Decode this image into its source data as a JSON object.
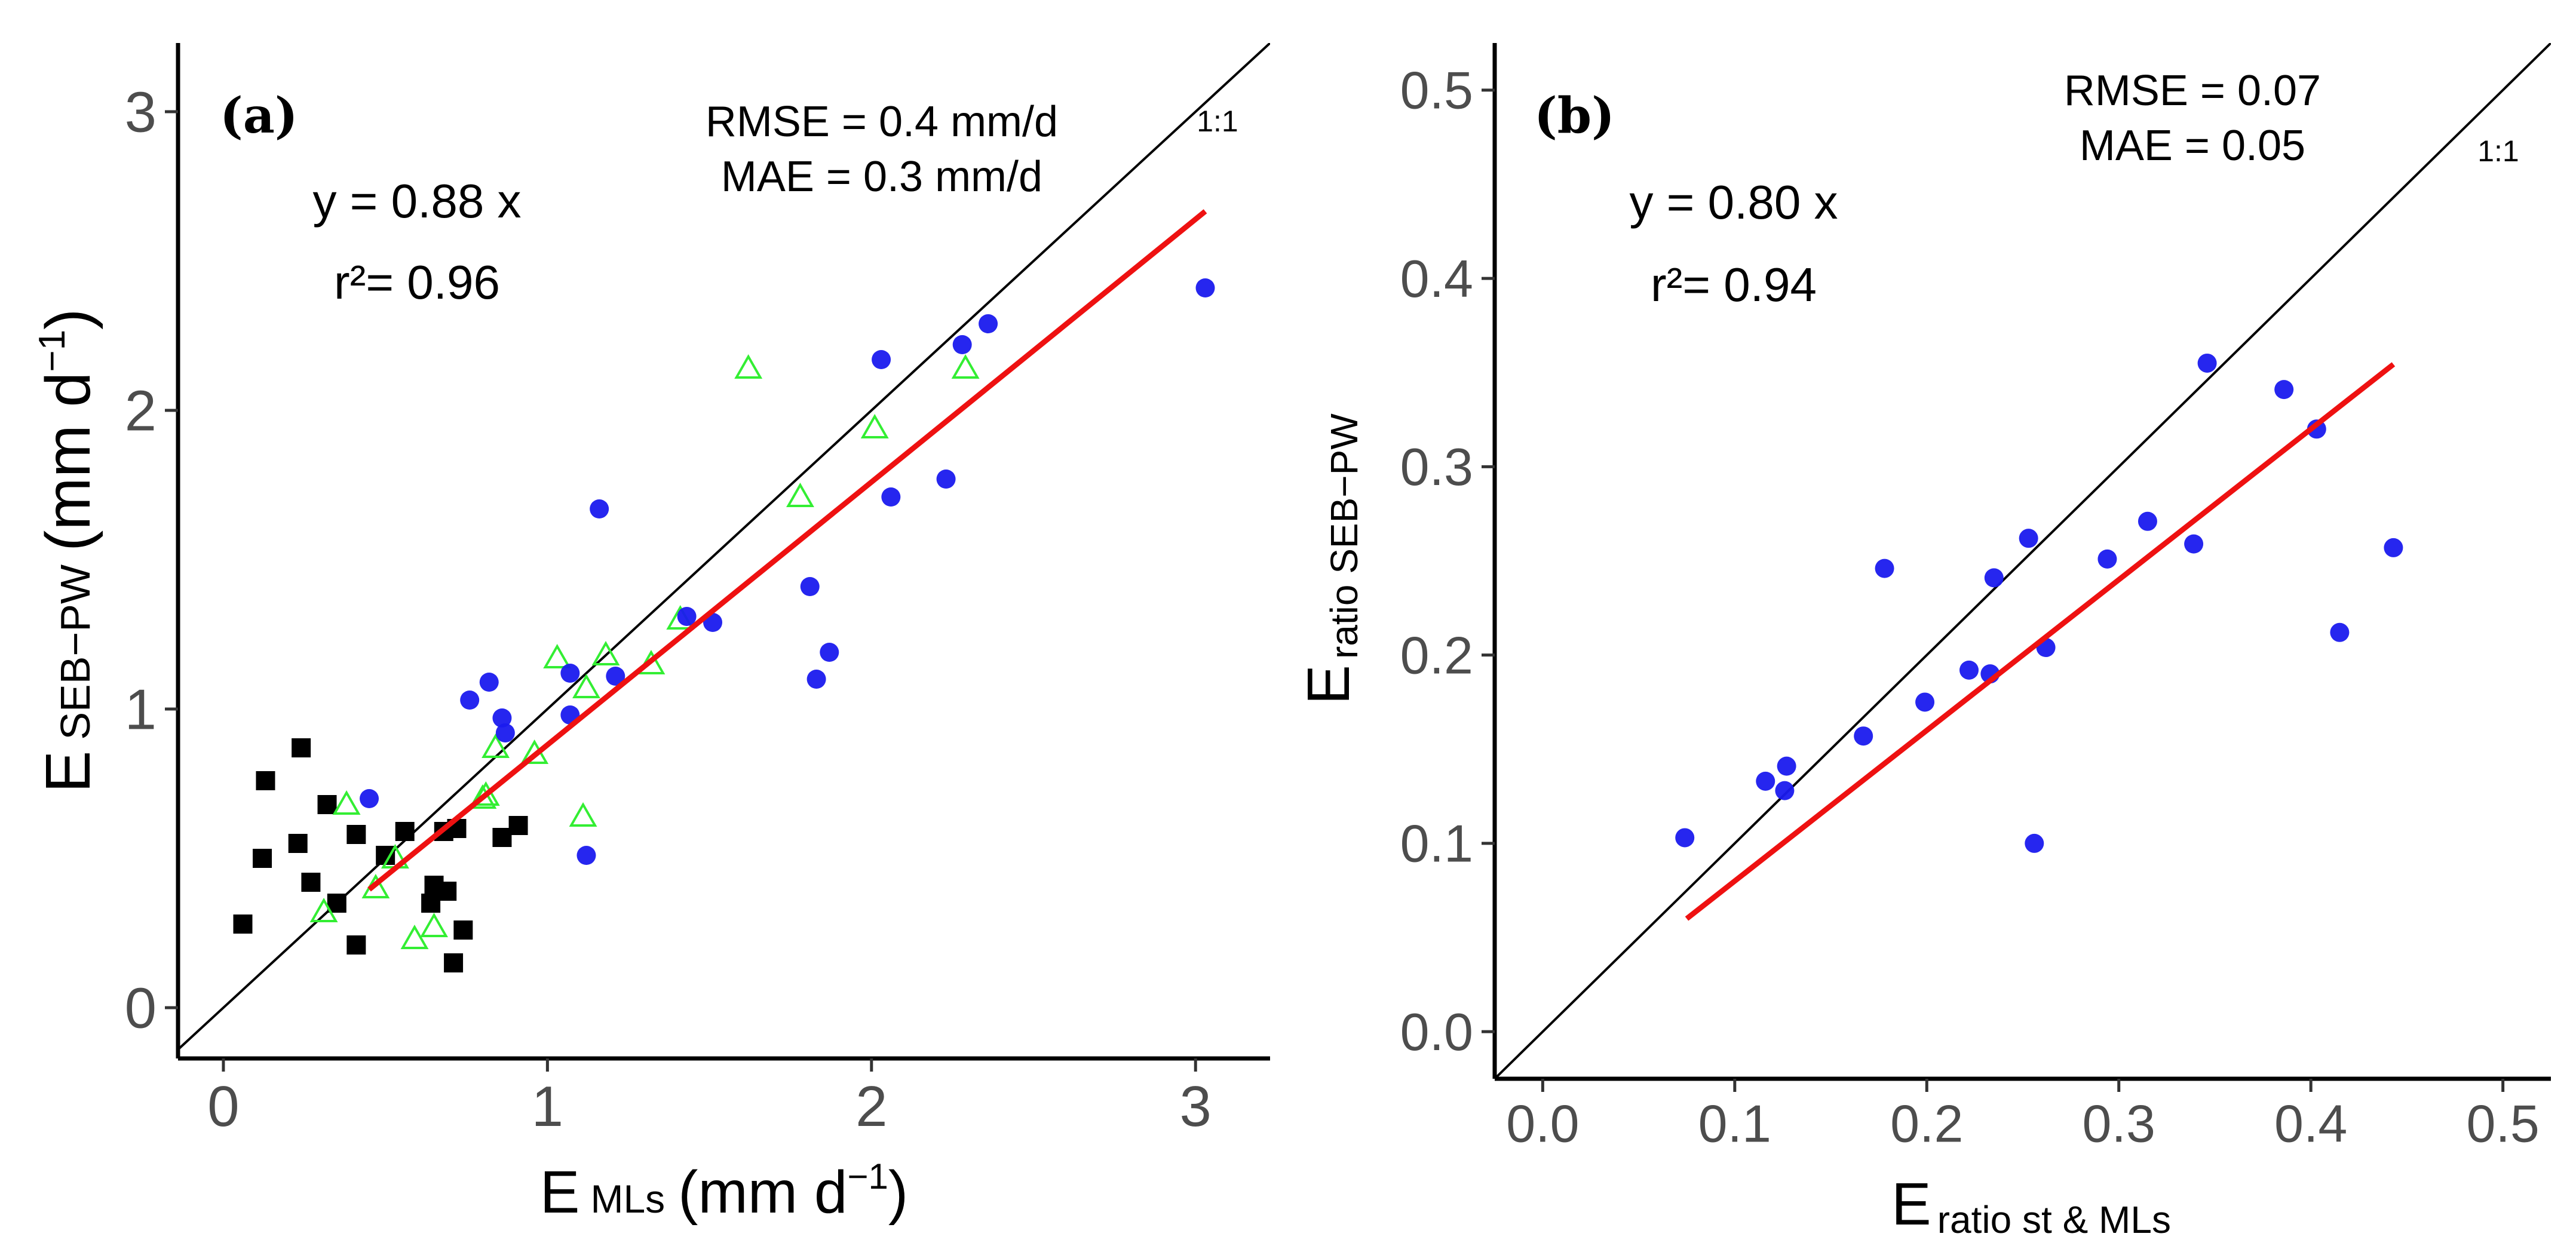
{
  "chart_data": [
    {
      "type": "scatter",
      "panel": "(a)",
      "xlabel_main": "E",
      "xlabel_sub": "MLs",
      "xlabel_unit": "(mm d",
      "xlabel_exp": "−1",
      "xlabel_close": ")",
      "ylabel_main": "E",
      "ylabel_sub": "SEB−PW",
      "ylabel_unit": "(mm d",
      "ylabel_exp": "−1",
      "ylabel_close": ")",
      "xlim": [
        -0.14,
        3.23
      ],
      "ylim": [
        -0.17,
        3.23
      ],
      "xticks": [
        0,
        1,
        2,
        3
      ],
      "yticks": [
        0,
        1,
        2,
        3
      ],
      "xtick_labels": [
        "0",
        "1",
        "2",
        "3"
      ],
      "ytick_labels": [
        "0",
        "1",
        "2",
        "3"
      ],
      "equation": "y = 0.88 x",
      "r2": "r²= 0.96",
      "rmse": "RMSE = 0.4 mm/d",
      "mae": "MAE = 0.3 mm/d",
      "one_to_one_label": "1:1",
      "fit": {
        "slope": 0.88,
        "x_range": [
          0.45,
          3.03
        ]
      },
      "colors": {
        "blue": "#1a1aee",
        "blue_light": "#5a5aee",
        "green": "#33ee33",
        "black": "#000000",
        "fit": "#ee1111"
      },
      "series": [
        {
          "name": "squares",
          "marker": "square",
          "color": "#000000",
          "points": [
            [
              0.06,
              0.28
            ],
            [
              0.12,
              0.5
            ],
            [
              0.13,
              0.76
            ],
            [
              0.23,
              0.55
            ],
            [
              0.24,
              0.87
            ],
            [
              0.27,
              0.42
            ],
            [
              0.32,
              0.68
            ],
            [
              0.35,
              0.35
            ],
            [
              0.41,
              0.21
            ],
            [
              0.41,
              0.58
            ],
            [
              0.5,
              0.51
            ],
            [
              0.56,
              0.59
            ],
            [
              0.64,
              0.35
            ],
            [
              0.65,
              0.41
            ],
            [
              0.68,
              0.59
            ],
            [
              0.69,
              0.39
            ],
            [
              0.71,
              0.15
            ],
            [
              0.72,
              0.6
            ],
            [
              0.74,
              0.26
            ],
            [
              0.86,
              0.57
            ],
            [
              0.91,
              0.61
            ]
          ]
        },
        {
          "name": "triangles",
          "marker": "triangle",
          "color": "#33ee33",
          "points": [
            [
              0.31,
              0.32
            ],
            [
              0.38,
              0.68
            ],
            [
              0.47,
              0.4
            ],
            [
              0.53,
              0.5
            ],
            [
              0.59,
              0.23
            ],
            [
              0.65,
              0.27
            ],
            [
              0.8,
              0.7
            ],
            [
              0.81,
              0.71
            ],
            [
              0.84,
              0.87
            ],
            [
              0.96,
              0.85
            ],
            [
              1.03,
              1.17
            ],
            [
              1.11,
              0.64
            ],
            [
              1.12,
              1.07
            ],
            [
              1.18,
              1.18
            ],
            [
              1.32,
              1.15
            ],
            [
              1.41,
              1.3
            ],
            [
              1.62,
              2.14
            ],
            [
              1.78,
              1.71
            ],
            [
              2.01,
              1.94
            ],
            [
              2.29,
              2.14
            ]
          ]
        },
        {
          "name": "circles",
          "marker": "circle",
          "color": "#1a1aee",
          "points": [
            [
              0.45,
              0.7
            ],
            [
              0.76,
              1.03
            ],
            [
              0.82,
              1.09
            ],
            [
              0.86,
              0.97
            ],
            [
              0.87,
              0.92
            ],
            [
              1.07,
              0.98
            ],
            [
              1.07,
              1.12
            ],
            [
              1.12,
              0.51
            ],
            [
              1.16,
              1.67
            ],
            [
              1.21,
              1.11
            ],
            [
              1.43,
              1.31
            ],
            [
              1.51,
              1.29
            ],
            [
              1.81,
              1.41
            ],
            [
              1.83,
              1.1
            ],
            [
              1.87,
              1.19
            ],
            [
              2.03,
              2.17
            ],
            [
              2.06,
              1.71
            ],
            [
              2.23,
              1.77
            ],
            [
              2.28,
              2.22
            ],
            [
              2.36,
              2.29
            ],
            [
              3.03,
              2.41
            ]
          ]
        }
      ]
    },
    {
      "type": "scatter",
      "panel": "(b)",
      "xlabel_main": "E",
      "xlabel_sub": "ratio st & MLs",
      "ylabel_main": "E",
      "ylabel_sub": "ratio SEB−PW",
      "xlim": [
        -0.025,
        0.525
      ],
      "ylim": [
        -0.025,
        0.525
      ],
      "xticks": [
        0.0,
        0.1,
        0.2,
        0.3,
        0.4,
        0.5
      ],
      "yticks": [
        0.0,
        0.1,
        0.2,
        0.3,
        0.4,
        0.5
      ],
      "xtick_labels": [
        "0.0",
        "0.1",
        "0.2",
        "0.3",
        "0.4",
        "0.5"
      ],
      "ytick_labels": [
        "0.0",
        "0.1",
        "0.2",
        "0.3",
        "0.4",
        "0.5"
      ],
      "equation": "y = 0.80 x",
      "r2": "r²= 0.94",
      "rmse": "RMSE = 0.07",
      "mae": "MAE = 0.05",
      "one_to_one_label": "1:1",
      "fit": {
        "slope": 0.8,
        "x_range": [
          0.075,
          0.443
        ]
      },
      "colors": {
        "blue": "#1a1aee",
        "fit": "#ee1111"
      },
      "series": [
        {
          "name": "circles",
          "marker": "circle",
          "color": "#1a1aee",
          "points": [
            [
              0.074,
              0.103
            ],
            [
              0.116,
              0.133
            ],
            [
              0.126,
              0.128
            ],
            [
              0.127,
              0.141
            ],
            [
              0.167,
              0.157
            ],
            [
              0.178,
              0.246
            ],
            [
              0.199,
              0.175
            ],
            [
              0.222,
              0.192
            ],
            [
              0.233,
              0.19
            ],
            [
              0.235,
              0.241
            ],
            [
              0.253,
              0.262
            ],
            [
              0.256,
              0.1
            ],
            [
              0.262,
              0.204
            ],
            [
              0.294,
              0.251
            ],
            [
              0.315,
              0.271
            ],
            [
              0.339,
              0.259
            ],
            [
              0.346,
              0.355
            ],
            [
              0.386,
              0.341
            ],
            [
              0.403,
              0.32
            ],
            [
              0.415,
              0.212
            ],
            [
              0.443,
              0.257
            ]
          ]
        }
      ]
    }
  ]
}
